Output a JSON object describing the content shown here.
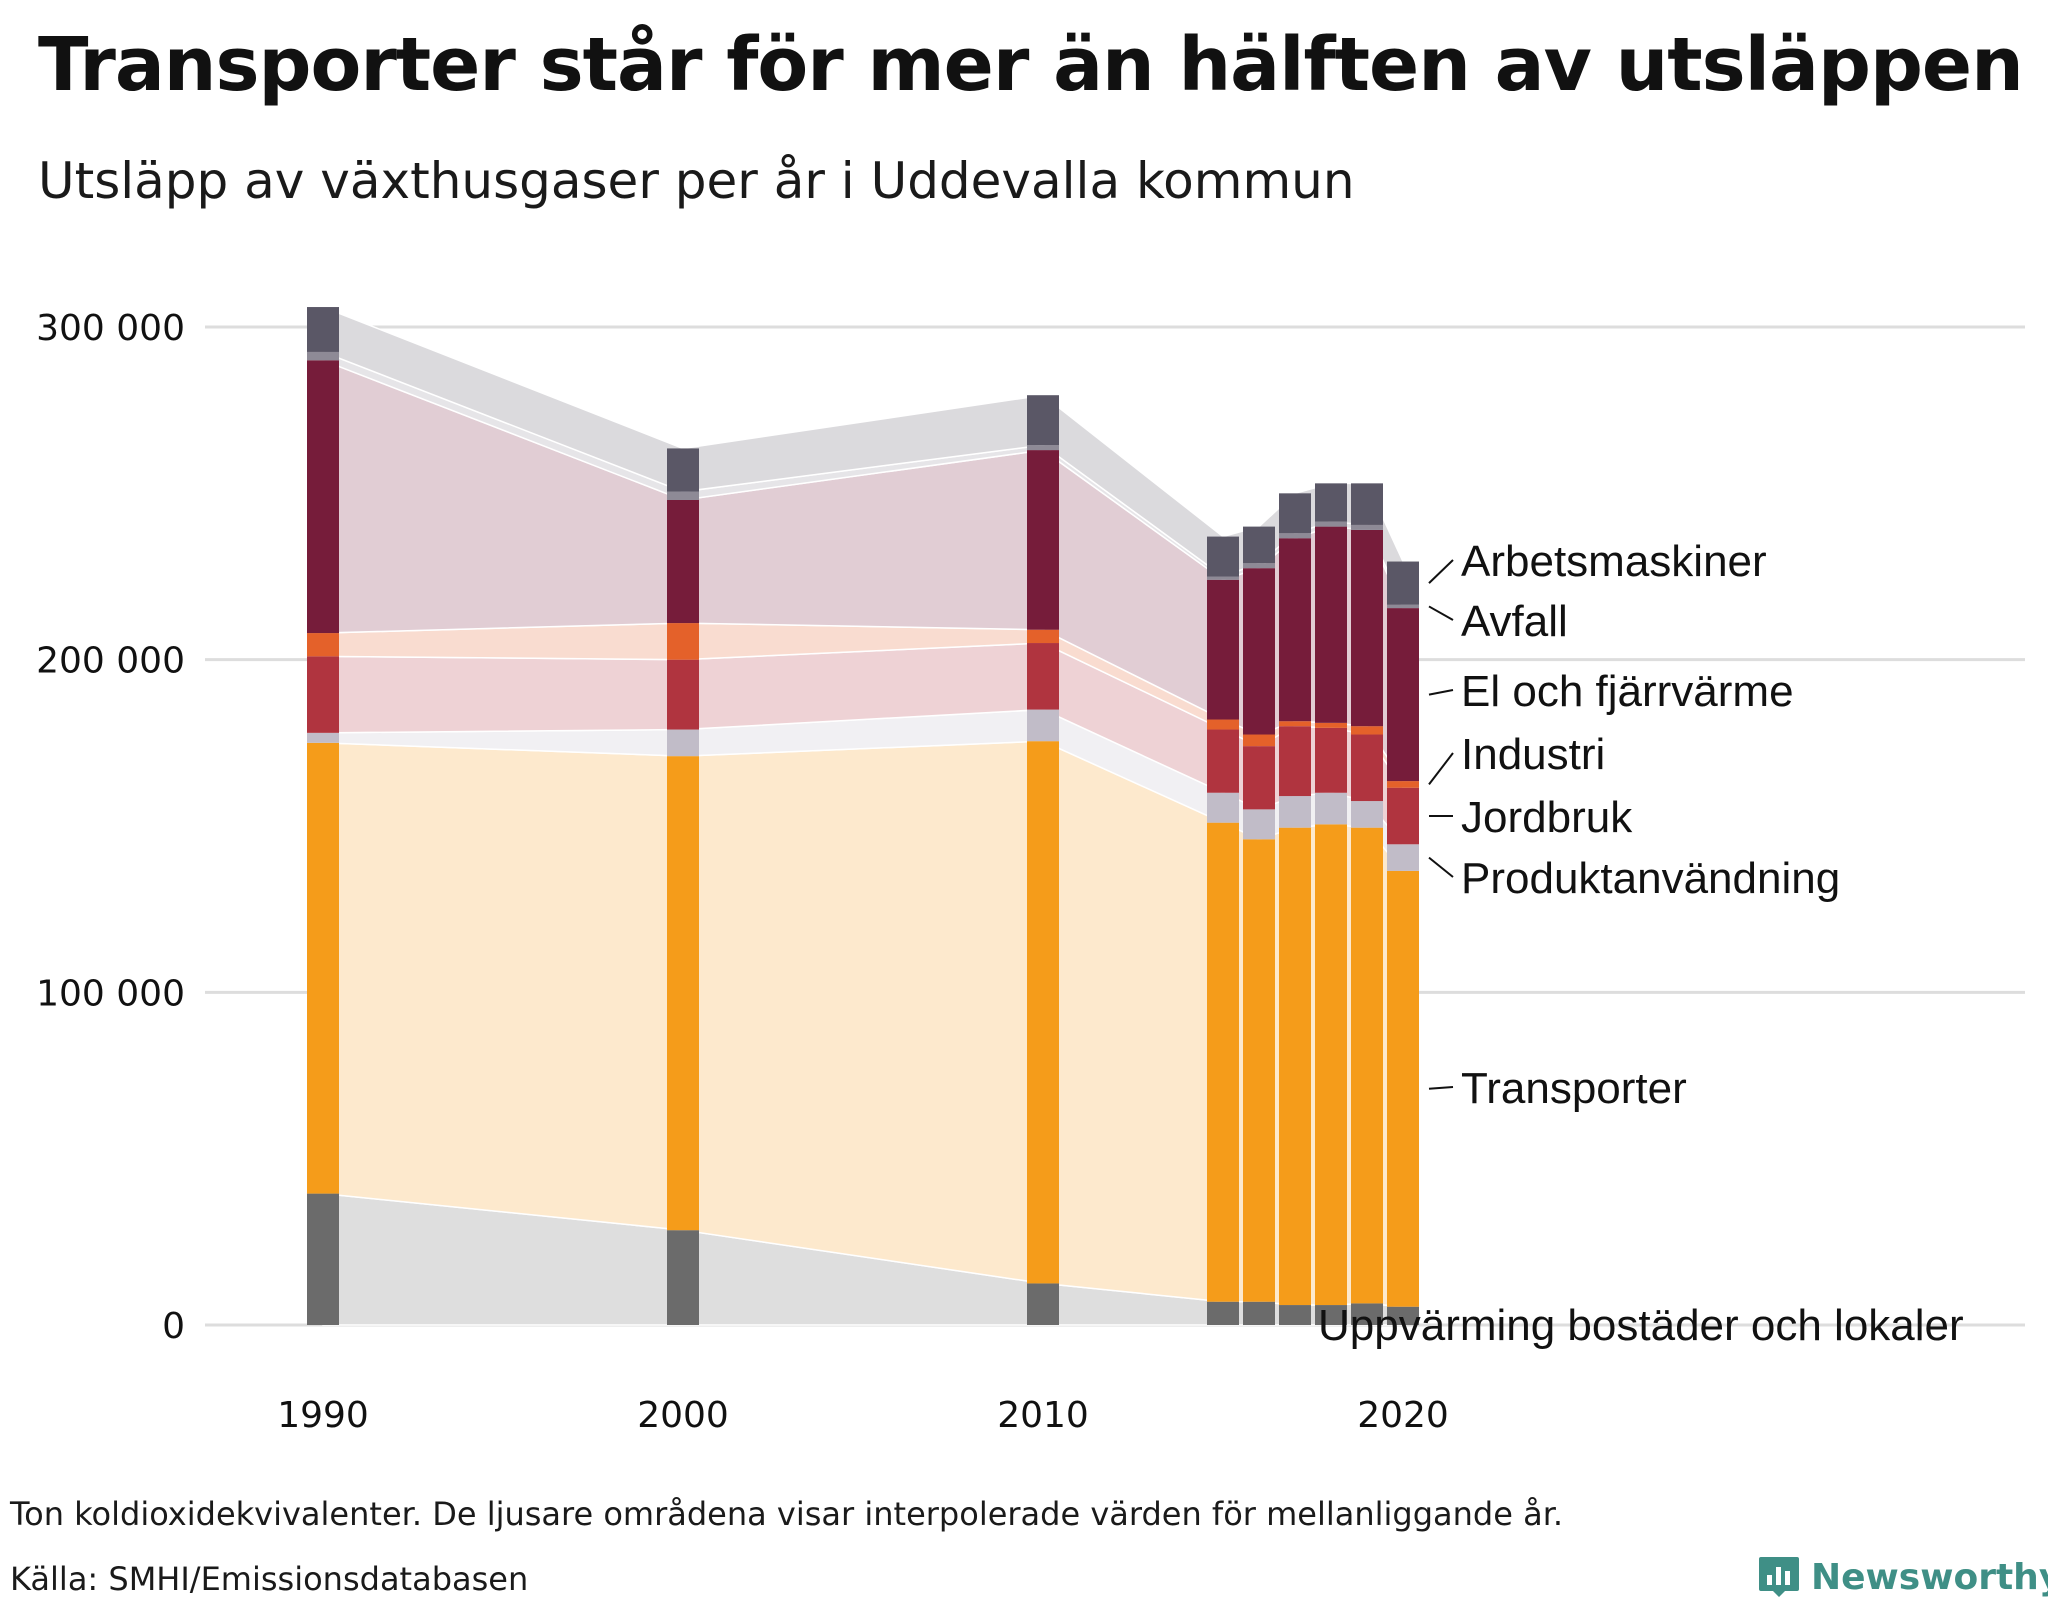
{
  "title": "Transporter står för mer än hälften av utsläppen",
  "subtitle": "Utsläpp av växthusgaser per år i Uddevalla kommun",
  "footer": {
    "note": "Ton koldioxidekvivalenter. De ljusare områdena visar interpolerade värden för mellanliggande år.",
    "source": "Källa: SMHI/Emissionsdatabasen",
    "brand": "Newsworthy"
  },
  "colors": {
    "Uppvärming bostäder och lokaler": "#6b6b6b",
    "Transporter": "#f59c1a",
    "Produktanvändning": "#c1bcc8",
    "Jordbruk": "#b0343f",
    "Industri": "#e4612a",
    "El och fjärrvärme": "#761c3a",
    "Avfall": "#8e8a96",
    "Arbetsmaskiner": "#5a5766",
    "brand": "#3f8f86",
    "grid": "#dddddd"
  },
  "chart_data": {
    "type": "bar",
    "stacked": true,
    "title": "Transporter står för mer än hälften av utsläppen",
    "subtitle": "Utsläpp av växthusgaser per år i Uddevalla kommun",
    "unit": "Ton koldioxidekvivalenter",
    "categories": [
      "1990",
      "2000",
      "2010",
      "2015",
      "2016",
      "2017",
      "2018",
      "2019",
      "2020"
    ],
    "x": [
      1990,
      2000,
      2010,
      2015,
      2016,
      2017,
      2018,
      2019,
      2020
    ],
    "xticks": [
      1990,
      2000,
      2010,
      2020
    ],
    "xtick_labels": [
      "1990",
      "2000",
      "2010",
      "2020"
    ],
    "yticks": [
      0,
      100000,
      200000,
      300000
    ],
    "ytick_labels": [
      "0",
      "100 000",
      "200 000",
      "300 000"
    ],
    "ylim": [
      0,
      310000
    ],
    "grid": true,
    "legend": "direct labels at right",
    "series": [
      {
        "name": "Uppvärming bostäder och lokaler",
        "values": [
          39500,
          28500,
          12500,
          7000,
          7000,
          6000,
          6000,
          6500,
          5500
        ]
      },
      {
        "name": "Transporter",
        "values": [
          135500,
          142500,
          163000,
          144000,
          139000,
          143500,
          144500,
          143000,
          131000
        ]
      },
      {
        "name": "Produktanvändning",
        "values": [
          3000,
          8000,
          9500,
          9000,
          9000,
          9500,
          9500,
          8000,
          8000
        ]
      },
      {
        "name": "Jordbruk",
        "values": [
          23000,
          21000,
          20000,
          19000,
          19000,
          21000,
          19500,
          20000,
          17000
        ]
      },
      {
        "name": "Industri",
        "values": [
          7000,
          11000,
          4000,
          3000,
          3500,
          1500,
          1500,
          2500,
          2000
        ]
      },
      {
        "name": "El och fjärrvärme",
        "values": [
          82000,
          37000,
          54000,
          42000,
          50000,
          55000,
          59000,
          59000,
          52000
        ]
      },
      {
        "name": "Avfall",
        "values": [
          2500,
          2500,
          1500,
          1000,
          1500,
          1500,
          1500,
          1500,
          1000
        ]
      },
      {
        "name": "Arbetsmaskiner",
        "values": [
          13500,
          13000,
          15000,
          12000,
          11000,
          12000,
          11500,
          12500,
          13000
        ]
      }
    ],
    "series_labels": [
      "Arbetsmaskiner",
      "Avfall",
      "El och fjärrvärme",
      "Industri",
      "Jordbruk",
      "Produktanvändning",
      "Transporter",
      "Uppvärming bostäder och lokaler"
    ]
  }
}
